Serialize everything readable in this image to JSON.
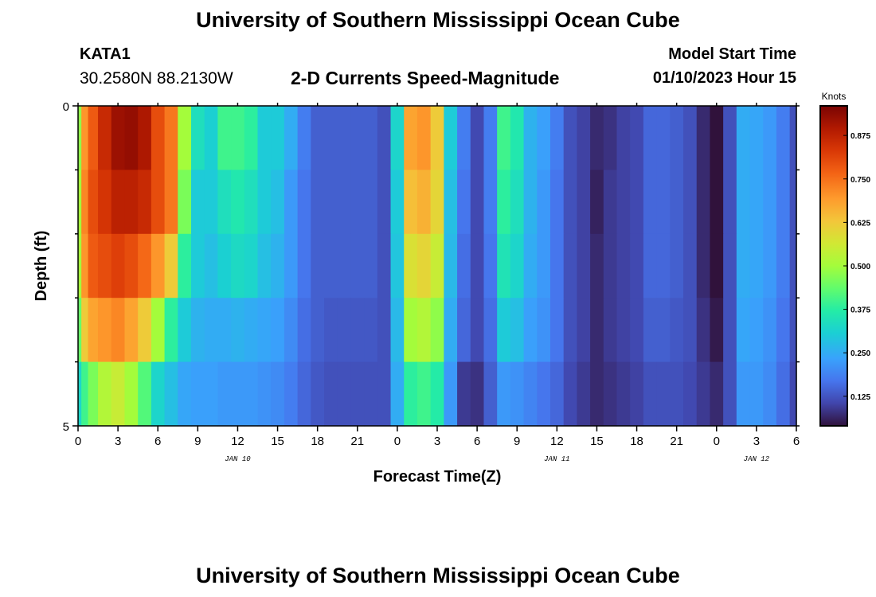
{
  "header": {
    "title": "University of Southern Mississippi Ocean Cube",
    "station_id": "KATA1",
    "station_coords": "30.2580N  88.2130W",
    "subtitle": "2-D Currents Speed-Magnitude",
    "model_start_label": "Model Start Time",
    "model_start_value": "01/10/2023 Hour 15"
  },
  "footer": {
    "title": "University of Southern Mississippi Ocean Cube"
  },
  "chart_data": {
    "type": "heatmap",
    "title": "2-D Currents Speed-Magnitude",
    "xlabel": "Forecast Time(Z)",
    "ylabel": "Depth (ft)",
    "x_tick_labels": [
      "0",
      "3",
      "6",
      "9",
      "12",
      "15",
      "18",
      "21",
      "0",
      "3",
      "6",
      "9",
      "12",
      "15",
      "18",
      "21",
      "0",
      "3",
      "6"
    ],
    "x_start_hour": 0,
    "x_end_hour": 54,
    "date_labels": [
      {
        "label": "JAN 10",
        "hour": 12
      },
      {
        "label": "JAN 11",
        "hour": 36
      },
      {
        "label": "JAN 12",
        "hour": 51
      }
    ],
    "y_tick_labels": [
      "0",
      "5"
    ],
    "ylim": [
      0,
      5
    ],
    "depth_rows": 5,
    "colorbar": {
      "title": "Knots",
      "tick_labels": [
        "0.875",
        "0.750",
        "0.625",
        "0.500",
        "0.375",
        "0.250",
        "0.125"
      ],
      "tick_values": [
        0.875,
        0.75,
        0.625,
        0.5,
        0.375,
        0.25,
        0.125
      ],
      "range": [
        0.04,
        0.96
      ]
    },
    "data_start_hour": 0,
    "data_end_hour": 54,
    "hours": [
      0,
      0.5,
      1,
      2,
      3,
      4,
      5,
      6,
      7,
      8,
      9,
      10,
      11,
      12,
      13,
      14,
      15,
      16,
      17,
      18,
      19,
      20,
      21,
      22,
      23,
      24,
      25,
      26,
      27,
      28,
      29,
      30,
      31,
      32,
      33,
      34,
      35,
      36,
      37,
      38,
      39,
      40,
      41,
      42,
      43,
      44,
      45,
      46,
      47,
      48,
      49,
      50,
      51,
      52,
      53,
      54
    ],
    "speeds": [
      [
        0.48,
        0.7,
        0.78,
        0.86,
        0.92,
        0.93,
        0.9,
        0.8,
        0.74,
        0.5,
        0.34,
        0.31,
        0.4,
        0.4,
        0.38,
        0.3,
        0.3,
        0.25,
        0.18,
        0.14,
        0.14,
        0.14,
        0.14,
        0.14,
        0.12,
        0.32,
        0.68,
        0.7,
        0.62,
        0.3,
        0.18,
        0.11,
        0.18,
        0.4,
        0.36,
        0.26,
        0.23,
        0.18,
        0.12,
        0.1,
        0.07,
        0.08,
        0.1,
        0.11,
        0.15,
        0.15,
        0.14,
        0.12,
        0.07,
        0.02,
        0.12,
        0.25,
        0.24,
        0.22,
        0.18,
        0.12
      ],
      [
        0.5,
        0.72,
        0.8,
        0.84,
        0.88,
        0.88,
        0.86,
        0.8,
        0.74,
        0.46,
        0.3,
        0.3,
        0.34,
        0.36,
        0.34,
        0.3,
        0.28,
        0.22,
        0.17,
        0.14,
        0.14,
        0.14,
        0.14,
        0.14,
        0.12,
        0.3,
        0.64,
        0.66,
        0.6,
        0.28,
        0.17,
        0.11,
        0.18,
        0.38,
        0.34,
        0.26,
        0.22,
        0.17,
        0.12,
        0.1,
        0.06,
        0.09,
        0.1,
        0.11,
        0.15,
        0.15,
        0.14,
        0.12,
        0.07,
        0.03,
        0.12,
        0.25,
        0.24,
        0.22,
        0.18,
        0.12
      ],
      [
        0.5,
        0.7,
        0.78,
        0.8,
        0.82,
        0.8,
        0.76,
        0.7,
        0.62,
        0.38,
        0.3,
        0.28,
        0.31,
        0.33,
        0.32,
        0.28,
        0.26,
        0.22,
        0.17,
        0.14,
        0.14,
        0.14,
        0.14,
        0.14,
        0.12,
        0.29,
        0.58,
        0.6,
        0.55,
        0.27,
        0.16,
        0.11,
        0.17,
        0.35,
        0.32,
        0.25,
        0.22,
        0.17,
        0.12,
        0.1,
        0.07,
        0.09,
        0.1,
        0.11,
        0.15,
        0.15,
        0.14,
        0.12,
        0.07,
        0.04,
        0.12,
        0.25,
        0.24,
        0.22,
        0.18,
        0.12
      ],
      [
        0.44,
        0.62,
        0.68,
        0.7,
        0.72,
        0.68,
        0.62,
        0.5,
        0.38,
        0.3,
        0.26,
        0.25,
        0.25,
        0.26,
        0.25,
        0.24,
        0.23,
        0.2,
        0.16,
        0.14,
        0.13,
        0.13,
        0.13,
        0.13,
        0.12,
        0.27,
        0.5,
        0.52,
        0.48,
        0.25,
        0.15,
        0.11,
        0.16,
        0.3,
        0.28,
        0.23,
        0.21,
        0.17,
        0.12,
        0.1,
        0.07,
        0.09,
        0.1,
        0.11,
        0.14,
        0.14,
        0.13,
        0.12,
        0.08,
        0.05,
        0.12,
        0.24,
        0.23,
        0.21,
        0.17,
        0.12
      ],
      [
        0.32,
        0.4,
        0.46,
        0.52,
        0.55,
        0.5,
        0.42,
        0.32,
        0.28,
        0.24,
        0.23,
        0.23,
        0.22,
        0.22,
        0.22,
        0.21,
        0.2,
        0.18,
        0.15,
        0.13,
        0.12,
        0.12,
        0.12,
        0.12,
        0.12,
        0.25,
        0.38,
        0.4,
        0.37,
        0.22,
        0.09,
        0.08,
        0.14,
        0.22,
        0.21,
        0.19,
        0.17,
        0.15,
        0.11,
        0.09,
        0.07,
        0.08,
        0.09,
        0.1,
        0.12,
        0.12,
        0.12,
        0.11,
        0.09,
        0.07,
        0.12,
        0.22,
        0.22,
        0.2,
        0.16,
        0.11
      ]
    ]
  }
}
